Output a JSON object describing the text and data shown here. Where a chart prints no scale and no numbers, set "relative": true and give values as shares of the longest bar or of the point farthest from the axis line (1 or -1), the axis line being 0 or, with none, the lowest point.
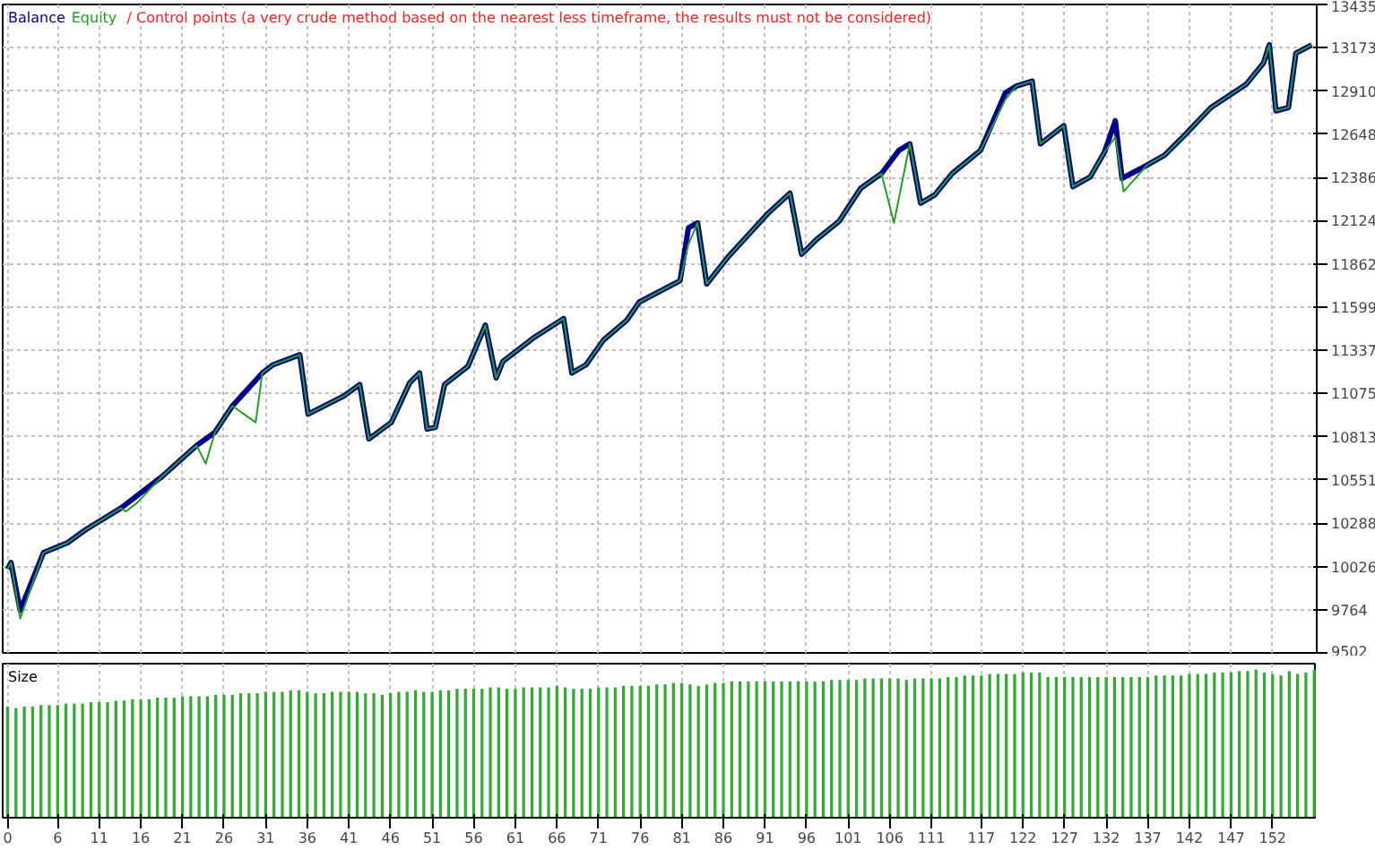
{
  "chart_data": [
    {
      "type": "line",
      "annotations": [
        "/ Control points (a very crude method based on the nearest less timeframe, the results must not be considered)"
      ],
      "xlim": [
        -0.6,
        157.3
      ],
      "xticks": [
        0,
        6,
        11,
        16,
        21,
        26,
        31,
        36,
        41,
        46,
        51,
        56,
        61,
        66,
        71,
        76,
        81,
        86,
        91,
        96,
        101,
        106,
        111,
        117,
        122,
        127,
        132,
        137,
        142,
        147,
        152
      ],
      "ylim": [
        9502,
        13435
      ],
      "yticks": [
        9502,
        9764,
        10026,
        10288,
        10551,
        10813,
        11075,
        11337,
        11599,
        11862,
        12124,
        12386,
        12648,
        12910,
        13173,
        13435
      ],
      "tick_labels": "y",
      "grid": true,
      "series": [
        {
          "name": "Balance",
          "color": "#00008b",
          "x": [
            0.0,
            0.4,
            1.5,
            4.3,
            7.2,
            9.4,
            13.6,
            18.5,
            22.7,
            24.9,
            27.0,
            30.6,
            31.9,
            35.1,
            36.1,
            40.4,
            42.3,
            43.4,
            46.1,
            48.3,
            49.5,
            50.4,
            51.4,
            52.5,
            55.3,
            57.4,
            58.7,
            59.5,
            63.1,
            66.8,
            67.8,
            69.5,
            71.6,
            74.4,
            75.9,
            80.8,
            81.8,
            82.9,
            84.0,
            86.5,
            91.4,
            94.0,
            95.4,
            97.2,
            99.9,
            102.5,
            105.0,
            107.1,
            108.4,
            109.7,
            111.4,
            113.5,
            116.9,
            119.9,
            121.2,
            123.1,
            124.1,
            126.9,
            128.0,
            130.1,
            131.8,
            133.1,
            133.9,
            136.9,
            139.0,
            141.2,
            144.6,
            148.8,
            150.9,
            151.6,
            152.4,
            153.9,
            154.8,
            156.7
          ],
          "values": [
            10010,
            10050,
            9760,
            10110,
            10170,
            10250,
            10380,
            10570,
            10760,
            10840,
            11000,
            11200,
            11250,
            11310,
            10950,
            11060,
            11130,
            10800,
            10900,
            11140,
            11200,
            10860,
            10870,
            11130,
            11240,
            11490,
            11170,
            11270,
            11410,
            11530,
            11200,
            11250,
            11400,
            11520,
            11630,
            11760,
            12080,
            12110,
            11740,
            11900,
            12170,
            12290,
            11920,
            12010,
            12120,
            12320,
            12410,
            12550,
            12590,
            12230,
            12280,
            12410,
            12550,
            12900,
            12940,
            12970,
            12590,
            12700,
            12330,
            12390,
            12540,
            12730,
            12380,
            12460,
            12520,
            12630,
            12810,
            12950,
            13080,
            13190,
            12790,
            12810,
            13140,
            13190
          ]
        },
        {
          "name": "Equity",
          "color": "#22a022",
          "x": [
            0.0,
            0.4,
            1.5,
            4.3,
            7.2,
            9.4,
            13.6,
            14.2,
            15.5,
            18.5,
            22.7,
            23.8,
            24.9,
            27.0,
            29.8,
            30.6,
            31.9,
            35.1,
            36.1,
            40.4,
            42.3,
            43.4,
            46.1,
            48.3,
            49.5,
            50.4,
            51.4,
            52.5,
            55.3,
            57.4,
            58.7,
            59.5,
            63.1,
            66.8,
            67.8,
            69.5,
            71.6,
            74.4,
            75.9,
            80.8,
            81.8,
            82.9,
            84.0,
            86.5,
            91.4,
            94.0,
            95.4,
            97.2,
            99.9,
            102.5,
            105.0,
            106.5,
            108.4,
            109.7,
            111.4,
            113.5,
            116.9,
            119.9,
            121.2,
            123.1,
            124.1,
            126.9,
            128.0,
            130.1,
            131.8,
            133.1,
            134.1,
            136.9,
            139.0,
            141.2,
            144.6,
            148.8,
            150.9,
            151.6,
            152.4,
            153.9,
            154.8,
            156.7
          ],
          "values": [
            10010,
            10050,
            9710,
            10110,
            10170,
            10250,
            10380,
            10360,
            10410,
            10570,
            10760,
            10650,
            10840,
            11000,
            10900,
            11200,
            11250,
            11310,
            10950,
            11060,
            11130,
            10800,
            10900,
            11140,
            11200,
            10860,
            10870,
            11130,
            11240,
            11490,
            11170,
            11270,
            11410,
            11530,
            11200,
            11250,
            11400,
            11520,
            11630,
            11760,
            11980,
            12110,
            11740,
            11900,
            12170,
            12290,
            11920,
            12010,
            12120,
            12320,
            12410,
            12110,
            12590,
            12230,
            12280,
            12410,
            12550,
            12860,
            12940,
            12970,
            12590,
            12700,
            12330,
            12390,
            12540,
            12630,
            12300,
            12460,
            12520,
            12630,
            12810,
            12950,
            13080,
            13190,
            12790,
            12810,
            13140,
            13190
          ]
        }
      ]
    },
    {
      "type": "bar",
      "title": "Size",
      "relative": true,
      "tick_labels": "x",
      "grid": "x",
      "xlim": [
        -0.6,
        157.3
      ],
      "xticks": [
        0,
        6,
        11,
        16,
        21,
        26,
        31,
        36,
        41,
        46,
        51,
        56,
        61,
        66,
        71,
        76,
        81,
        86,
        91,
        96,
        101,
        106,
        111,
        117,
        122,
        127,
        132,
        137,
        142,
        147,
        152
      ],
      "color": "#33aa33",
      "x": [
        0,
        1,
        2,
        3,
        4,
        5,
        6,
        7,
        8,
        9,
        10,
        11,
        12,
        13,
        14,
        15,
        16,
        17,
        18,
        19,
        20,
        21,
        22,
        23,
        24,
        25,
        26,
        27,
        28,
        29,
        30,
        31,
        32,
        33,
        34,
        35,
        36,
        37,
        38,
        39,
        40,
        41,
        42,
        43,
        44,
        45,
        46,
        47,
        48,
        49,
        50,
        51,
        52,
        53,
        54,
        55,
        56,
        57,
        58,
        59,
        60,
        61,
        62,
        63,
        64,
        65,
        66,
        67,
        68,
        69,
        70,
        71,
        72,
        73,
        74,
        75,
        76,
        77,
        78,
        79,
        80,
        81,
        82,
        83,
        84,
        85,
        86,
        87,
        88,
        89,
        90,
        91,
        92,
        93,
        94,
        95,
        96,
        97,
        98,
        99,
        100,
        101,
        102,
        103,
        104,
        105,
        106,
        107,
        108,
        109,
        110,
        111,
        112,
        113,
        114,
        115,
        116,
        117,
        118,
        119,
        120,
        121,
        122,
        123,
        124,
        125,
        126,
        127,
        128,
        129,
        130,
        131,
        132,
        133,
        134,
        135,
        136,
        137,
        138,
        139,
        140,
        141,
        142,
        143,
        144,
        145,
        146,
        147,
        148,
        149,
        150,
        151,
        152,
        153,
        154,
        155,
        156,
        157
      ],
      "values": [
        0.75,
        0.74,
        0.75,
        0.75,
        0.76,
        0.76,
        0.76,
        0.77,
        0.77,
        0.77,
        0.78,
        0.78,
        0.78,
        0.79,
        0.79,
        0.8,
        0.8,
        0.8,
        0.81,
        0.81,
        0.81,
        0.82,
        0.82,
        0.82,
        0.82,
        0.83,
        0.83,
        0.83,
        0.84,
        0.84,
        0.84,
        0.85,
        0.85,
        0.85,
        0.86,
        0.86,
        0.85,
        0.84,
        0.84,
        0.85,
        0.85,
        0.85,
        0.85,
        0.84,
        0.84,
        0.83,
        0.84,
        0.85,
        0.85,
        0.86,
        0.85,
        0.85,
        0.86,
        0.86,
        0.87,
        0.87,
        0.87,
        0.87,
        0.88,
        0.88,
        0.87,
        0.87,
        0.88,
        0.88,
        0.88,
        0.88,
        0.89,
        0.88,
        0.87,
        0.87,
        0.87,
        0.88,
        0.88,
        0.88,
        0.89,
        0.89,
        0.89,
        0.89,
        0.9,
        0.9,
        0.91,
        0.91,
        0.9,
        0.89,
        0.9,
        0.91,
        0.91,
        0.92,
        0.92,
        0.92,
        0.92,
        0.92,
        0.92,
        0.92,
        0.92,
        0.92,
        0.92,
        0.92,
        0.92,
        0.93,
        0.93,
        0.93,
        0.93,
        0.94,
        0.94,
        0.94,
        0.94,
        0.94,
        0.93,
        0.94,
        0.94,
        0.94,
        0.94,
        0.95,
        0.95,
        0.96,
        0.96,
        0.96,
        0.97,
        0.97,
        0.97,
        0.97,
        0.98,
        0.98,
        0.98,
        0.95,
        0.95,
        0.95,
        0.95,
        0.95,
        0.95,
        0.95,
        0.95,
        0.95,
        0.95,
        0.95,
        0.95,
        0.95,
        0.96,
        0.96,
        0.96,
        0.96,
        0.97,
        0.97,
        0.97,
        0.98,
        0.98,
        0.98,
        0.99,
        0.99,
        1.0,
        0.98,
        0.97,
        0.96,
        0.99,
        0.97,
        0.98,
        1.0
      ]
    }
  ]
}
